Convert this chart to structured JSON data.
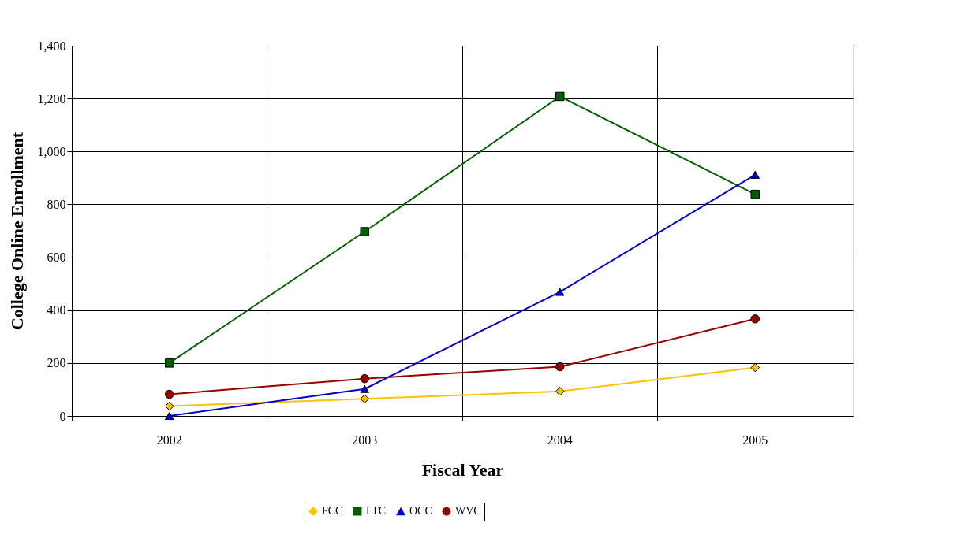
{
  "chart_data": {
    "type": "line",
    "xlabel": "Fiscal Year",
    "ylabel": "College Online Enrollment",
    "categories": [
      "2002",
      "2003",
      "2004",
      "2005"
    ],
    "series": [
      {
        "name": "FCC",
        "color": "#ffc000",
        "marker": "diamond",
        "values": [
          37,
          65,
          93,
          183
        ]
      },
      {
        "name": "LTC",
        "color": "#006000",
        "marker": "square",
        "values": [
          200,
          697,
          1208,
          838
        ]
      },
      {
        "name": "OCC",
        "color": "#0000cc",
        "marker": "triangle",
        "values": [
          0,
          102,
          469,
          912
        ]
      },
      {
        "name": "WVC",
        "color": "#990000",
        "marker": "circle",
        "values": [
          82,
          141,
          186,
          367
        ]
      }
    ],
    "ylim": [
      0,
      1400
    ],
    "yticks": [
      0,
      200,
      400,
      600,
      800,
      {
        "value": 1000,
        "label": "1,000"
      },
      {
        "value": 1200,
        "label": "1,200"
      },
      {
        "value": 1400,
        "label": "1,400"
      }
    ],
    "grid": true,
    "legend": "bottom",
    "line_style": "solid"
  }
}
